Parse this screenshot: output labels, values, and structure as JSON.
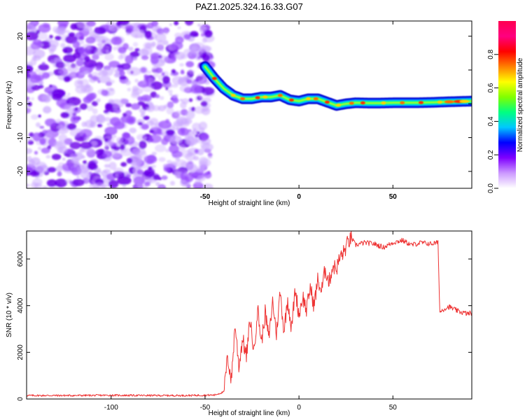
{
  "title": "PAZ1.2025.324.16.33.G07",
  "chart_data": [
    {
      "type": "heatmap",
      "title": "",
      "xlabel": "Height of straight line (km)",
      "ylabel": "Frequency (Hz)",
      "xlim": [
        -145,
        92
      ],
      "ylim": [
        -25,
        24.5
      ],
      "xticks": [
        -100,
        -50,
        0,
        50
      ],
      "yticks": [
        -20,
        -10,
        0,
        10,
        20
      ],
      "xtick_labels": [
        "-100",
        "-50",
        "0",
        "50"
      ],
      "ytick_labels": [
        "-20",
        "-10",
        "0",
        "10",
        "20"
      ],
      "noise_region_x": [
        -145,
        -47
      ],
      "ridge": {
        "x": [
          -50,
          -45,
          -40,
          -35,
          -30,
          -25,
          -20,
          -15,
          -10,
          -5,
          0,
          5,
          10,
          15,
          20,
          25,
          30,
          40,
          50,
          60,
          70,
          80,
          92
        ],
        "freq": [
          11,
          7.5,
          4.5,
          2.5,
          1.5,
          1.5,
          2.0,
          2.0,
          2.5,
          1.2,
          0.8,
          1.5,
          1.5,
          0.5,
          -0.5,
          0.0,
          0.3,
          0.2,
          0.3,
          0.3,
          0.4,
          0.6,
          0.8
        ]
      },
      "colorbar": {
        "label": "Normalized spectral amplitude",
        "ticks": [
          0.0,
          0.2,
          0.4,
          0.6,
          0.8
        ],
        "tick_labels": [
          "0.0",
          "0.2",
          "0.4",
          "0.6",
          "0.8"
        ],
        "colors": [
          "#ffffff",
          "#cc99ff",
          "#7f00ff",
          "#0000ff",
          "#00c8ff",
          "#00ff80",
          "#80ff00",
          "#ffff00",
          "#ff8000",
          "#ff0000",
          "#ff0080",
          "#ff0050"
        ]
      },
      "colors": {
        "noise": "#8a2be2"
      }
    },
    {
      "type": "line",
      "title": "",
      "xlabel": "Height of straight line (km)",
      "ylabel": "SNR (10 * v/v)",
      "xlim": [
        -145,
        92
      ],
      "ylim": [
        0,
        7200
      ],
      "xticks": [
        -100,
        -50,
        0,
        50
      ],
      "yticks": [
        0,
        2000,
        4000,
        6000
      ],
      "xtick_labels": [
        "-100",
        "-50",
        "0",
        "50"
      ],
      "ytick_labels": [
        "0",
        "2000",
        "4000",
        "6000"
      ],
      "series": [
        {
          "name": "SNR",
          "color": "#ee3333",
          "x": [
            -145,
            -120,
            -100,
            -80,
            -60,
            -45,
            -40,
            -38,
            -36,
            -34,
            -32,
            -30,
            -28,
            -26,
            -24,
            -22,
            -20,
            -18,
            -16,
            -14,
            -12,
            -10,
            -8,
            -6,
            -4,
            -2,
            0,
            2,
            4,
            6,
            8,
            10,
            12,
            14,
            16,
            18,
            20,
            22,
            24,
            26,
            28,
            30,
            35,
            40,
            45,
            50,
            55,
            60,
            65,
            70,
            74,
            75,
            76,
            78,
            80,
            85,
            90,
            92
          ],
          "y": [
            150,
            150,
            160,
            150,
            150,
            170,
            300,
            1800,
            800,
            3200,
            1400,
            2600,
            1800,
            3400,
            2000,
            3900,
            2400,
            3700,
            2600,
            4200,
            2800,
            4600,
            2900,
            4300,
            3000,
            4700,
            3600,
            4400,
            3800,
            4800,
            4000,
            5100,
            4600,
            5600,
            5000,
            5700,
            5600,
            6100,
            6300,
            6700,
            6900,
            6600,
            6700,
            6650,
            6500,
            6700,
            6800,
            6600,
            6700,
            6650,
            6700,
            3700,
            3800,
            3900,
            3950,
            3750,
            3650,
            3700
          ]
        }
      ]
    }
  ]
}
